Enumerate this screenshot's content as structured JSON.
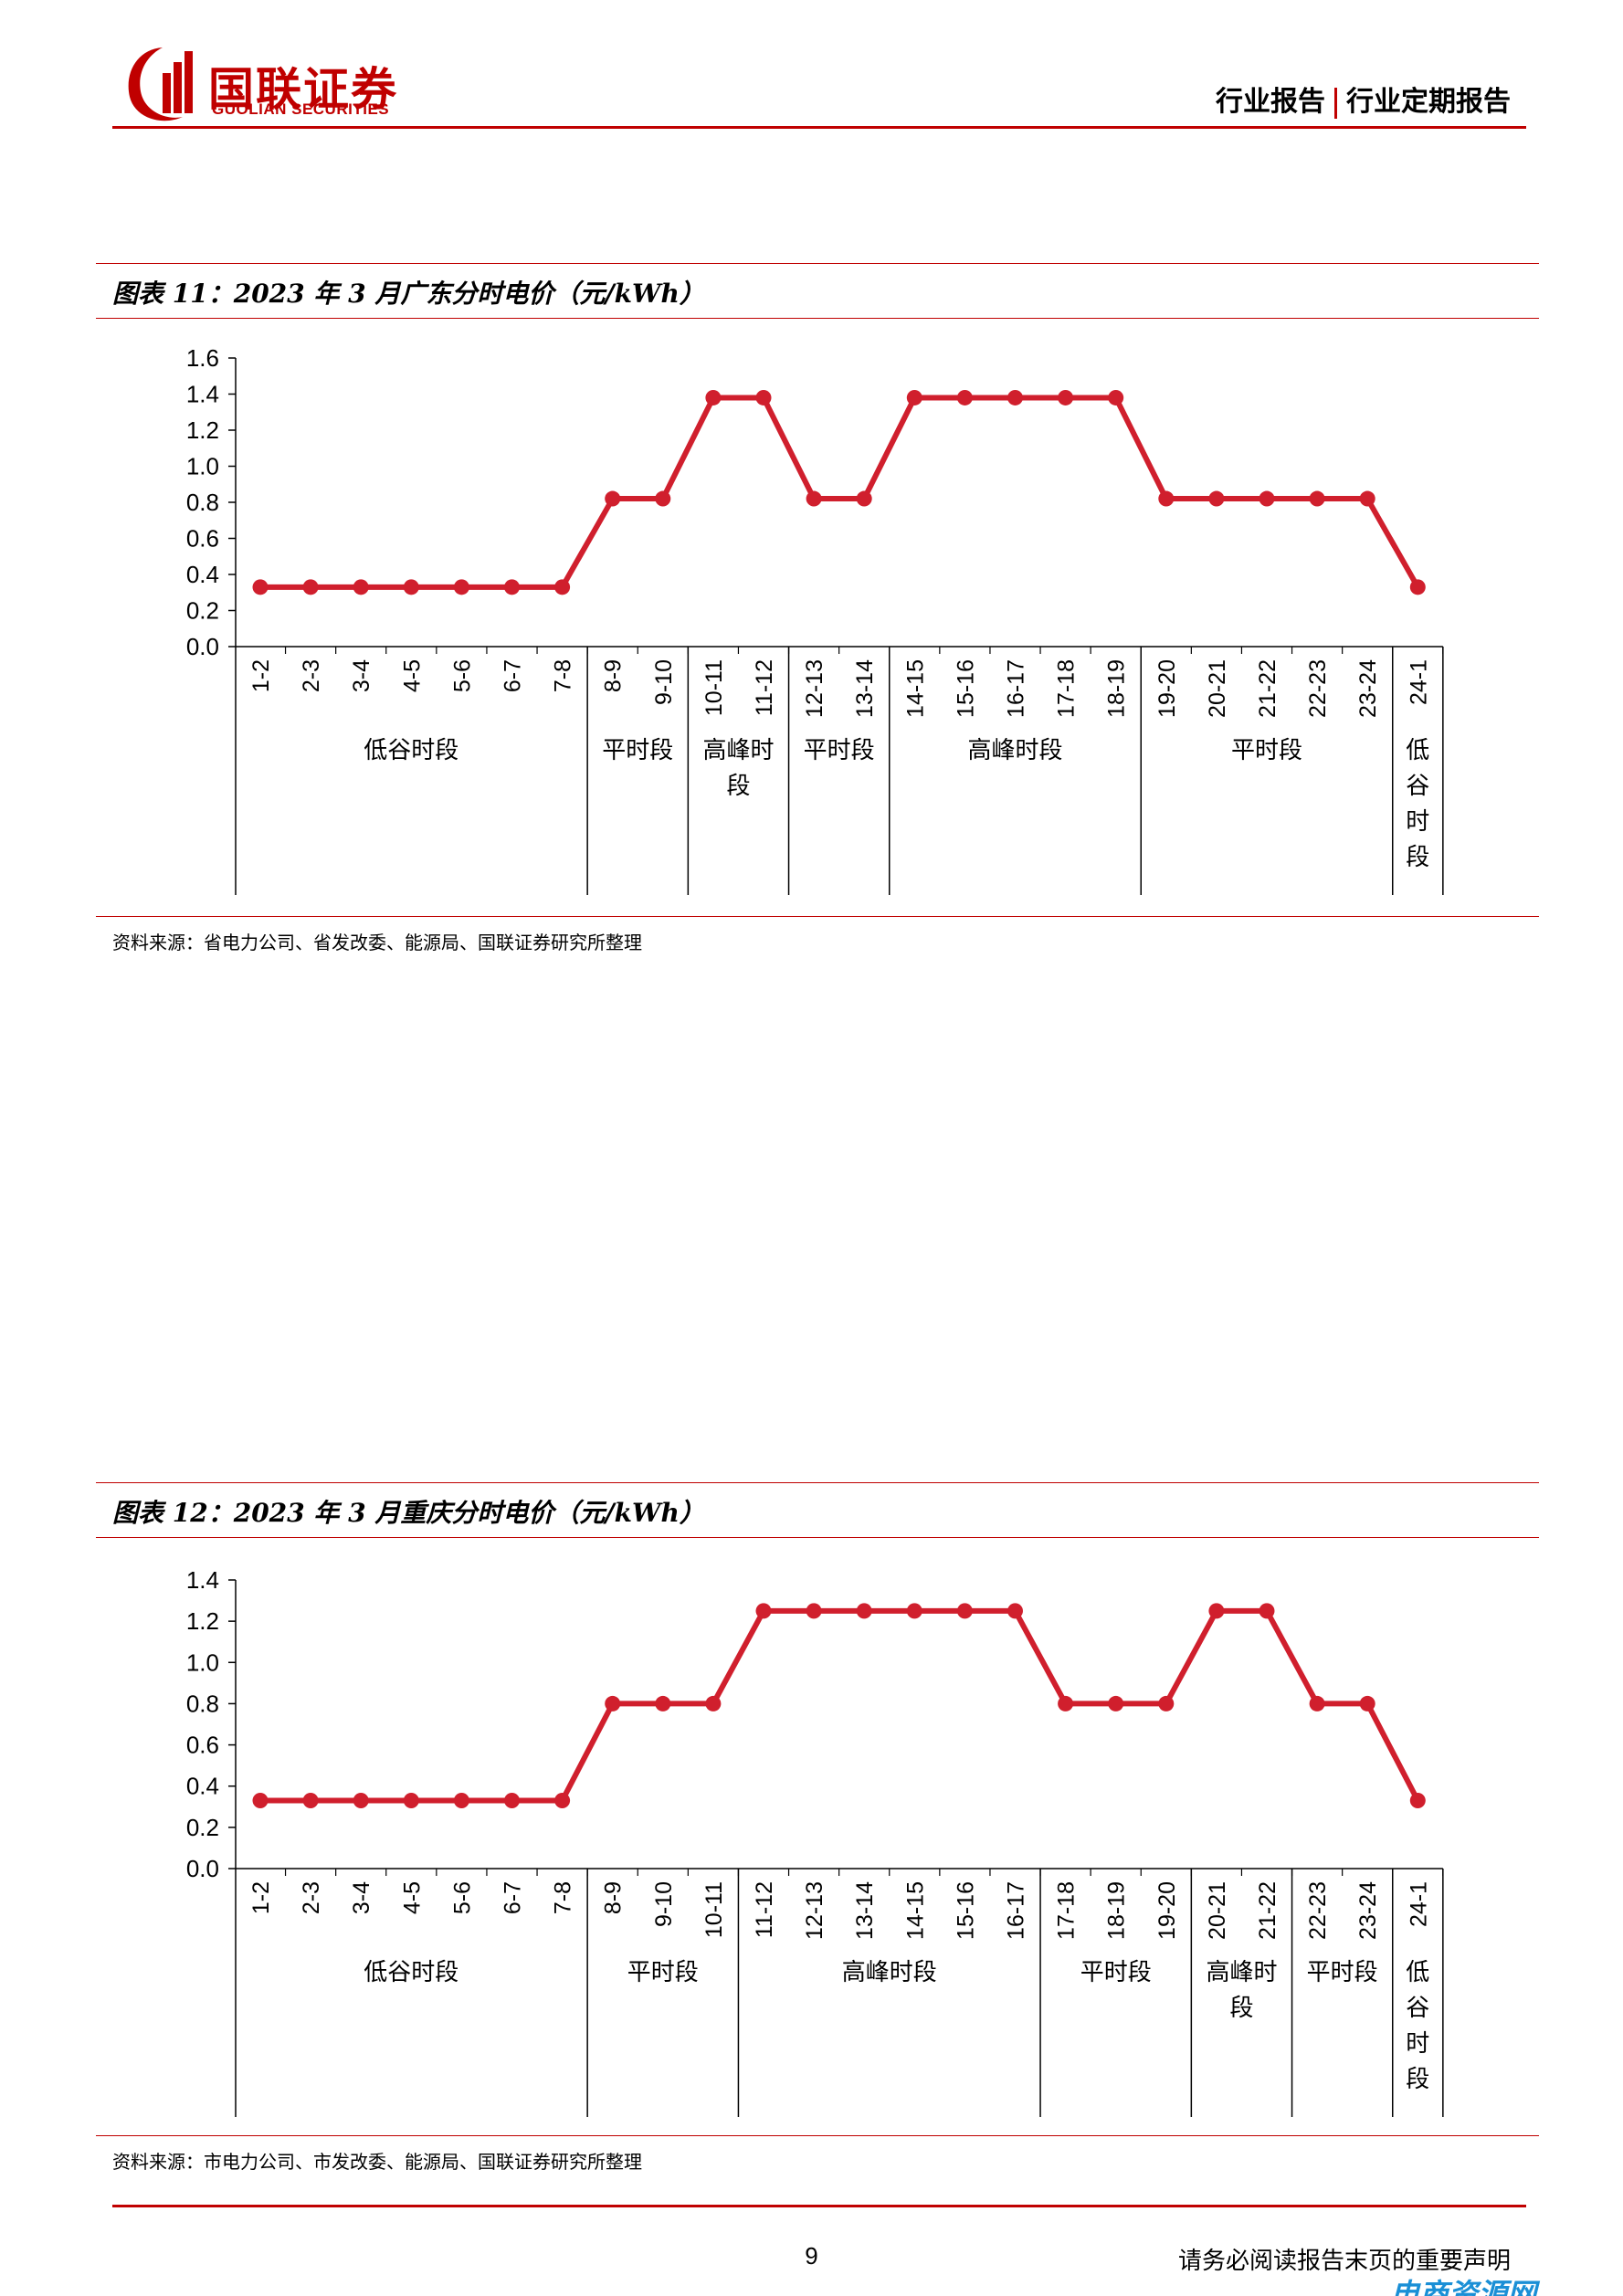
{
  "header": {
    "logo_cn": "国联证券",
    "logo_en": "GUOLIAN SECURITIES",
    "report_type": "行业报告",
    "report_subtype": "行业定期报告"
  },
  "colors": {
    "accent": "#c00000",
    "series": "#d01f2d"
  },
  "figures": [
    {
      "caption": "图表 11：2023 年 3 月广东分时电价（元/kWh）",
      "source": "资料来源：省电力公司、省发改委、能源局、国联证券研究所整理"
    },
    {
      "caption": "图表 12：2023 年 3 月重庆分时电价（元/kWh）",
      "source": "资料来源：市电力公司、市发改委、能源局、国联证券研究所整理"
    }
  ],
  "chart_data": [
    {
      "type": "line",
      "title": "",
      "categories": [
        "1-2",
        "2-3",
        "3-4",
        "4-5",
        "5-6",
        "6-7",
        "7-8",
        "8-9",
        "9-10",
        "10-11",
        "11-12",
        "12-13",
        "13-14",
        "14-15",
        "15-16",
        "16-17",
        "17-18",
        "18-19",
        "19-20",
        "20-21",
        "21-22",
        "22-23",
        "23-24",
        "24-1"
      ],
      "values": [
        0.33,
        0.33,
        0.33,
        0.33,
        0.33,
        0.33,
        0.33,
        0.82,
        0.82,
        1.38,
        1.38,
        0.82,
        0.82,
        1.38,
        1.38,
        1.38,
        1.38,
        1.38,
        0.82,
        0.82,
        0.82,
        0.82,
        0.82,
        0.33
      ],
      "ylim": [
        0,
        1.6
      ],
      "yticks": [
        "0.0",
        "0.2",
        "0.4",
        "0.6",
        "0.8",
        "1.0",
        "1.2",
        "1.4",
        "1.6"
      ],
      "groups": [
        {
          "label": "低谷时段",
          "start": 0,
          "end": 6
        },
        {
          "label": "平时段",
          "start": 7,
          "end": 8
        },
        {
          "label": "高峰时段",
          "start": 9,
          "end": 10
        },
        {
          "label": "平时段",
          "start": 11,
          "end": 12
        },
        {
          "label": "高峰时段",
          "start": 13,
          "end": 17
        },
        {
          "label": "平时段",
          "start": 18,
          "end": 22
        },
        {
          "label": "低谷时段",
          "start": 23,
          "end": 23
        }
      ],
      "grid": false,
      "legend": "none"
    },
    {
      "type": "line",
      "title": "",
      "categories": [
        "1-2",
        "2-3",
        "3-4",
        "4-5",
        "5-6",
        "6-7",
        "7-8",
        "8-9",
        "9-10",
        "10-11",
        "11-12",
        "12-13",
        "13-14",
        "14-15",
        "15-16",
        "16-17",
        "17-18",
        "18-19",
        "19-20",
        "20-21",
        "21-22",
        "22-23",
        "23-24",
        "24-1"
      ],
      "values": [
        0.33,
        0.33,
        0.33,
        0.33,
        0.33,
        0.33,
        0.33,
        0.8,
        0.8,
        0.8,
        1.25,
        1.25,
        1.25,
        1.25,
        1.25,
        1.25,
        0.8,
        0.8,
        0.8,
        1.25,
        1.25,
        0.8,
        0.8,
        0.33
      ],
      "ylim": [
        0,
        1.4
      ],
      "yticks": [
        "0.0",
        "0.2",
        "0.4",
        "0.6",
        "0.8",
        "1.0",
        "1.2",
        "1.4"
      ],
      "groups": [
        {
          "label": "低谷时段",
          "start": 0,
          "end": 6
        },
        {
          "label": "平时段",
          "start": 7,
          "end": 9
        },
        {
          "label": "高峰时段",
          "start": 10,
          "end": 15
        },
        {
          "label": "平时段",
          "start": 16,
          "end": 18
        },
        {
          "label": "高峰时段",
          "start": 19,
          "end": 20
        },
        {
          "label": "平时段",
          "start": 21,
          "end": 22
        },
        {
          "label": "低谷时段",
          "start": 23,
          "end": 23
        }
      ],
      "grid": false,
      "legend": "none"
    }
  ],
  "footer": {
    "page_number": "9",
    "notice": "请务必阅读报告末页的重要声明",
    "watermark": "电商资源网"
  }
}
